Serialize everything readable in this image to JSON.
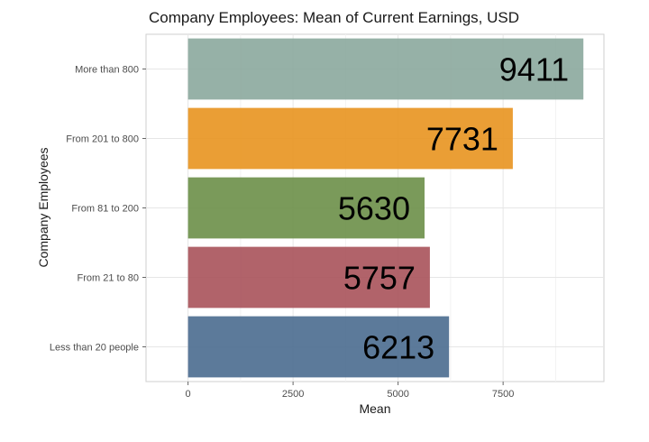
{
  "chart_data": {
    "type": "bar",
    "orientation": "horizontal",
    "title": "Company Employees: Mean of Current Earnings, USD",
    "xlabel": "Mean",
    "ylabel": "Company Employees",
    "categories": [
      "Less than 20 people",
      "From 21 to 80",
      "From 81 to 200",
      "From 201 to 800",
      "More than 800"
    ],
    "values": [
      6213,
      5757,
      5630,
      7731,
      9411
    ],
    "data_labels": [
      "6213",
      "5757",
      "5630",
      "7731",
      "9411"
    ],
    "colors": [
      "#4a6b8f",
      "#a8525a",
      "#6b8f48",
      "#e8931f",
      "#8ba89d"
    ],
    "xlim": [
      -1000,
      9900
    ],
    "x_ticks": [
      0,
      2500,
      5000,
      7500
    ],
    "x_tick_labels": [
      "0",
      "2500",
      "5000",
      "7500"
    ],
    "grid": true,
    "legend": "none"
  }
}
